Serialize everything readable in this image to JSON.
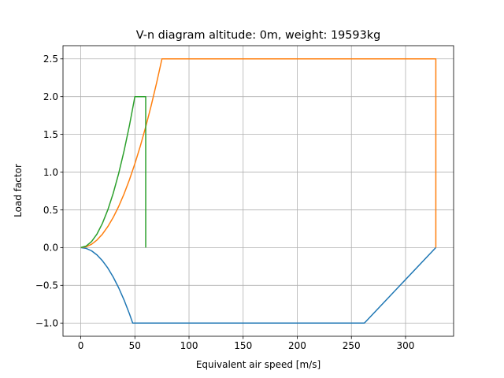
{
  "chart_data": {
    "type": "line",
    "title": "V-n diagram altitude: 0m, weight: 19593kg",
    "xlabel": "Equivalent air speed [m/s]",
    "ylabel": "Load factor",
    "xlim": [
      -16.4,
      344.4
    ],
    "ylim": [
      -1.175,
      2.675
    ],
    "xticks": [
      0,
      50,
      100,
      150,
      200,
      250,
      300
    ],
    "yticks": [
      -1.0,
      -0.5,
      0.0,
      0.5,
      1.0,
      1.5,
      2.0,
      2.5
    ],
    "xtick_labels": [
      "0",
      "50",
      "100",
      "150",
      "200",
      "250",
      "300"
    ],
    "ytick_labels": [
      "−1.0",
      "−0.5",
      "0.0",
      "0.5",
      "1.0",
      "1.5",
      "2.0",
      "2.5"
    ],
    "grid": true,
    "series": [
      {
        "color": "#1f77b4",
        "points": [
          [
            0,
            0
          ],
          [
            5,
            -0.011
          ],
          [
            10,
            -0.043
          ],
          [
            15,
            -0.098
          ],
          [
            20,
            -0.174
          ],
          [
            25,
            -0.271
          ],
          [
            30,
            -0.391
          ],
          [
            35,
            -0.532
          ],
          [
            40,
            -0.694
          ],
          [
            45,
            -0.879
          ],
          [
            48,
            -1.0
          ],
          [
            262,
            -1.0
          ],
          [
            328,
            0.0
          ]
        ]
      },
      {
        "color": "#ff7f0e",
        "points": [
          [
            0,
            0
          ],
          [
            5,
            0.011
          ],
          [
            10,
            0.044
          ],
          [
            15,
            0.1
          ],
          [
            20,
            0.178
          ],
          [
            25,
            0.278
          ],
          [
            30,
            0.4
          ],
          [
            35,
            0.544
          ],
          [
            40,
            0.711
          ],
          [
            45,
            0.9
          ],
          [
            50,
            1.111
          ],
          [
            55,
            1.344
          ],
          [
            60,
            1.6
          ],
          [
            65,
            1.878
          ],
          [
            70,
            2.178
          ],
          [
            75,
            2.5
          ],
          [
            328,
            2.5
          ],
          [
            328,
            0.0
          ]
        ]
      },
      {
        "color": "#2ca02c",
        "points": [
          [
            0,
            0
          ],
          [
            5,
            0.02
          ],
          [
            10,
            0.08
          ],
          [
            15,
            0.18
          ],
          [
            20,
            0.32
          ],
          [
            25,
            0.5
          ],
          [
            30,
            0.72
          ],
          [
            35,
            0.98
          ],
          [
            40,
            1.28
          ],
          [
            45,
            1.62
          ],
          [
            50,
            2.0
          ],
          [
            60,
            2.0
          ],
          [
            60,
            0.0
          ]
        ]
      }
    ]
  }
}
